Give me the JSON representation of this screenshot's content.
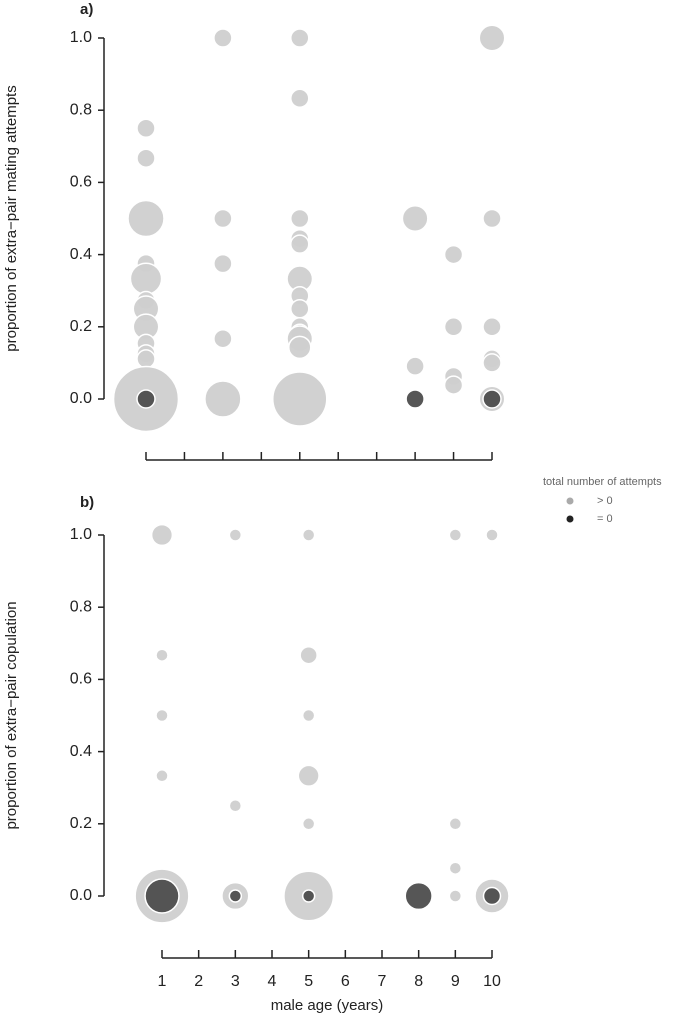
{
  "chart_data": [
    {
      "type": "scatter",
      "panel_label": "a)",
      "ylabel": "proportion of extra−pair mating attempts",
      "xlim": [
        1,
        10
      ],
      "ylim": [
        0,
        1
      ],
      "xticks": [
        1,
        2,
        3,
        4,
        5,
        6,
        7,
        8,
        9,
        10
      ],
      "show_xtick_labels": false,
      "yticks": [
        {
          "value": 0,
          "label": "0.0"
        },
        0.2,
        0.4,
        0.6,
        0.8,
        {
          "value": 1,
          "label": "1.0"
        }
      ],
      "legend_title": "total number of attempts",
      "series": [
        {
          "name": "> 0",
          "color": "#cfcfcf",
          "x": [
            1,
            1,
            1,
            1,
            1,
            1,
            1,
            1,
            1,
            1,
            1,
            1,
            3,
            3,
            3,
            3,
            3,
            5,
            5,
            5,
            5,
            5,
            5,
            5,
            5,
            5,
            5,
            5,
            5,
            5,
            8,
            8,
            9,
            9,
            9,
            9,
            10,
            10,
            10,
            10,
            10,
            10
          ],
          "y": [
            0.75,
            0.667,
            0.5,
            0.375,
            0.333,
            0.273,
            0.25,
            0.2,
            0.154,
            0.125,
            0.111,
            0,
            1,
            0.5,
            0.375,
            0.167,
            0,
            1,
            0.833,
            0.5,
            0.444,
            0.429,
            0.333,
            0.286,
            0.25,
            0.2,
            0.182,
            0.167,
            0.143,
            0,
            0.5,
            0.091,
            0.4,
            0.2,
            0.0625,
            0.0385,
            1,
            0.5,
            0.2,
            0.111,
            0.1,
            0
          ],
          "sizes": [
            1,
            1,
            4,
            1,
            3,
            1,
            2,
            2,
            1,
            1,
            1,
            13,
            1,
            1,
            1,
            1,
            4,
            1,
            1,
            1,
            1,
            1,
            2,
            1,
            1,
            1,
            1,
            2,
            1.5,
            9,
            2,
            1,
            1,
            1,
            1,
            1,
            2,
            1,
            1,
            1,
            1,
            2
          ]
        },
        {
          "name": "= 0",
          "color": "#4d4d4d",
          "x": [
            1,
            8,
            10
          ],
          "y": [
            0,
            0,
            0
          ],
          "sizes": [
            1,
            1,
            1
          ]
        }
      ]
    },
    {
      "type": "scatter",
      "panel_label": "b)",
      "ylabel": "proportion of extra−pair copulation",
      "xlabel": "male age (years)",
      "xlim": [
        1,
        10
      ],
      "ylim": [
        0,
        1
      ],
      "xticks": [
        1,
        2,
        3,
        4,
        5,
        6,
        7,
        8,
        9,
        10
      ],
      "show_xtick_labels": true,
      "yticks": [
        {
          "value": 0,
          "label": "0.0"
        },
        0.2,
        0.4,
        0.6,
        0.8,
        {
          "value": 1,
          "label": "1.0"
        }
      ],
      "series": [
        {
          "color": "#cfcfcf",
          "x": [
            1,
            1,
            1,
            1,
            1,
            3,
            3,
            3,
            5,
            5,
            5,
            5,
            5,
            5,
            9,
            9,
            9,
            9,
            10,
            10
          ],
          "y": [
            1,
            0.667,
            0.5,
            0.333,
            0,
            1,
            0.25,
            0,
            1,
            0.667,
            0.5,
            0.333,
            0.2,
            0,
            1,
            0.2,
            0.077,
            0,
            1,
            0
          ],
          "sizes": [
            3,
            1,
            1,
            1,
            20,
            1,
            1,
            5,
            1,
            2,
            1,
            3,
            1,
            17,
            1,
            1,
            1,
            1,
            1,
            8
          ]
        },
        {
          "color": "#4d4d4d",
          "x": [
            1,
            3,
            5,
            8,
            10
          ],
          "y": [
            0,
            0,
            0,
            0,
            0
          ],
          "sizes": [
            8,
            1,
            1,
            5,
            2
          ]
        }
      ]
    }
  ]
}
